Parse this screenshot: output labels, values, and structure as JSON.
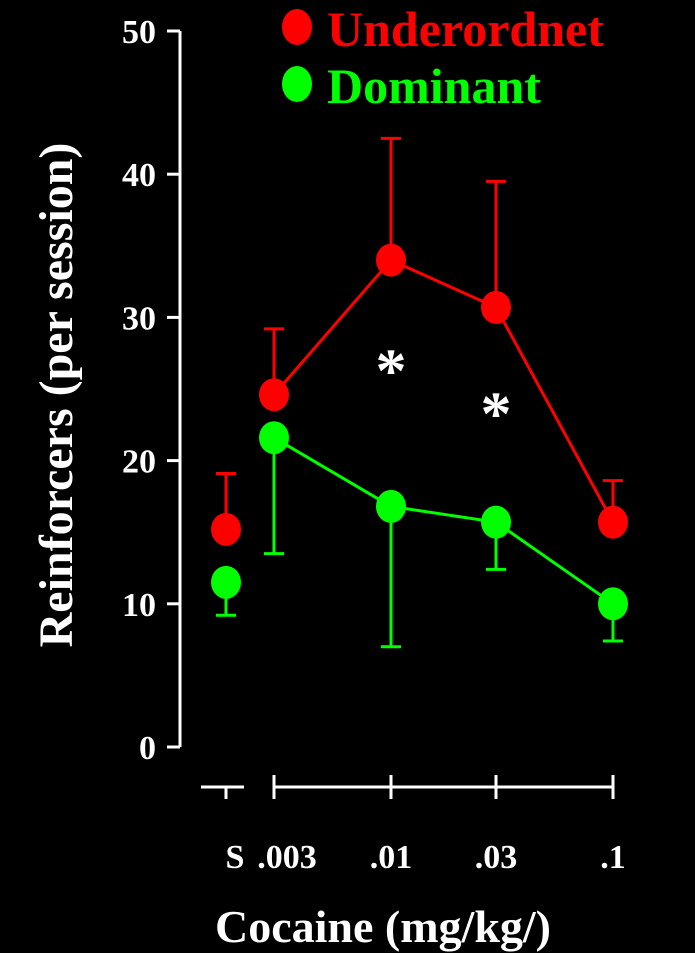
{
  "chart_data": {
    "type": "line",
    "title": "",
    "xlabel": "Cocaine (mg/kg/)",
    "ylabel": "Reinforcers (per session)",
    "ylim": [
      0,
      50
    ],
    "y_ticks": [
      "0",
      "10",
      "20",
      "30",
      "40",
      "50"
    ],
    "x_ticks": [
      "S",
      ".003",
      ".01",
      ".03",
      ".1"
    ],
    "grid": false,
    "legend_position": "top-right",
    "saline_label": "S",
    "series": [
      {
        "name": "Underordnet",
        "color": "#ff0000",
        "saline": {
          "value": 15.2,
          "error": 19.1
        },
        "x": [
          ".003",
          ".01",
          ".03",
          ".1"
        ],
        "values": [
          24.6,
          34.0,
          30.7,
          15.7
        ],
        "error_upper": [
          29.2,
          42.5,
          39.5,
          18.6
        ],
        "error_direction": "up"
      },
      {
        "name": "Dominant",
        "color": "#00ff00",
        "saline": {
          "value": 11.5,
          "error": 9.2
        },
        "x": [
          ".003",
          ".01",
          ".03",
          ".1"
        ],
        "values": [
          21.6,
          16.8,
          15.7,
          10.0
        ],
        "error_lower": [
          13.5,
          7.0,
          12.4,
          7.4
        ],
        "error_direction": "down"
      }
    ],
    "annotations": [
      {
        "text": "*",
        "x": ".01",
        "y": 26.5
      },
      {
        "text": "*",
        "x": ".03",
        "y": 23.5
      }
    ]
  }
}
